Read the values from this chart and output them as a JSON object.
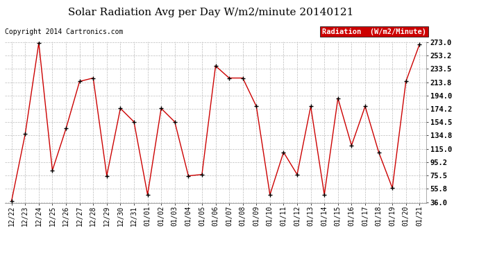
{
  "title": "Solar Radiation Avg per Day W/m2/minute 20140121",
  "copyright": "Copyright 2014 Cartronics.com",
  "legend_label": "Radiation  (W/m2/Minute)",
  "x_labels": [
    "12/22",
    "12/23",
    "12/24",
    "12/25",
    "12/26",
    "12/27",
    "12/28",
    "12/29",
    "12/30",
    "12/31",
    "01/01",
    "01/02",
    "01/03",
    "01/04",
    "01/05",
    "01/06",
    "01/07",
    "01/08",
    "01/09",
    "01/10",
    "01/11",
    "01/12",
    "01/13",
    "01/14",
    "01/15",
    "01/16",
    "01/17",
    "01/18",
    "01/19",
    "01/20",
    "01/21"
  ],
  "y_values": [
    38,
    137,
    272,
    83,
    145,
    215,
    220,
    75,
    175,
    155,
    47,
    175,
    155,
    75,
    77,
    238,
    220,
    220,
    178,
    47,
    110,
    77,
    178,
    47,
    190,
    120,
    178,
    110,
    57,
    215,
    270
  ],
  "ylim_min": 36.0,
  "ylim_max": 273.0,
  "yticks": [
    36.0,
    55.8,
    75.5,
    95.2,
    115.0,
    134.8,
    154.5,
    174.2,
    194.0,
    213.8,
    233.5,
    253.2,
    273.0
  ],
  "ytick_labels": [
    "36.0",
    "55.8",
    "75.5",
    "95.2",
    "115.0",
    "134.8",
    "154.5",
    "174.2",
    "194.0",
    "213.8",
    "233.5",
    "253.2",
    "273.0"
  ],
  "line_color": "#cc0000",
  "marker_color": "#000000",
  "bg_color": "#ffffff",
  "grid_color": "#bbbbbb",
  "title_fontsize": 11,
  "copyright_fontsize": 7,
  "tick_fontsize": 7,
  "ytick_fontsize": 7.5,
  "legend_bg": "#cc0000",
  "legend_fg": "#ffffff",
  "legend_fontsize": 7.5
}
